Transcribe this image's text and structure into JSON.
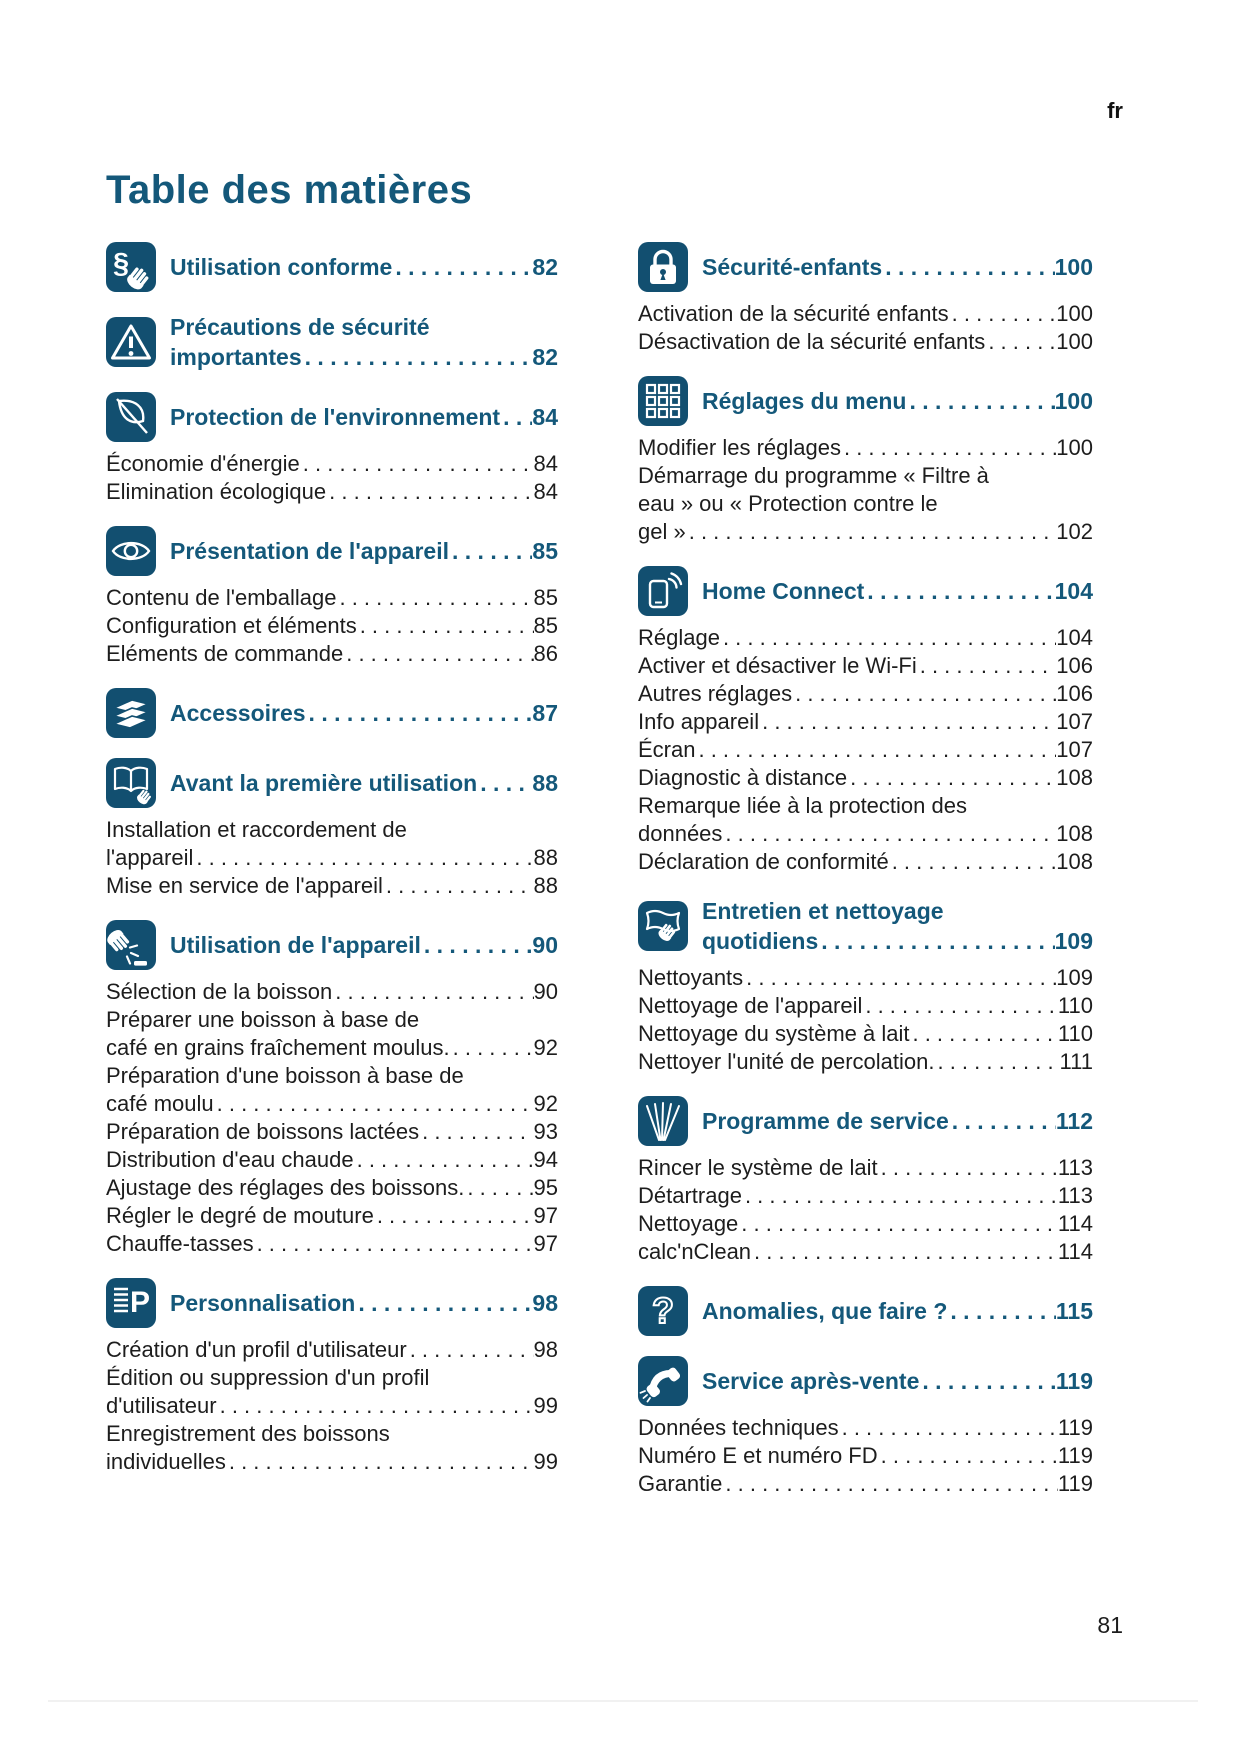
{
  "page": {
    "language_marker": "fr",
    "title": "Table des matières",
    "page_number": "81"
  },
  "colors": {
    "accent": "#14587a",
    "icon_background": "#124f70",
    "body_text": "#1d1d1d"
  },
  "columns": {
    "left": {
      "sections": [
        {
          "icon": "paragraph-hand-icon",
          "title_lines": [
            "Utilisation conforme"
          ],
          "page": "82",
          "items": []
        },
        {
          "icon": "warning-icon",
          "title_lines": [
            "Précautions de sécurité",
            "importantes"
          ],
          "page": "82",
          "items": []
        },
        {
          "icon": "leaf-icon",
          "title_lines": [
            "Protection de l'environnement"
          ],
          "page": "84",
          "items": [
            {
              "lines": [
                "Économie d'énergie"
              ],
              "page": "84"
            },
            {
              "lines": [
                "Elimination écologique"
              ],
              "page": "84"
            }
          ]
        },
        {
          "icon": "eye-icon",
          "title_lines": [
            "Présentation de l'appareil"
          ],
          "page": "85",
          "items": [
            {
              "lines": [
                "Contenu de l'emballage"
              ],
              "page": "85"
            },
            {
              "lines": [
                "Configuration et éléments"
              ],
              "page": "85"
            },
            {
              "lines": [
                "Eléments de commande"
              ],
              "page": "86"
            }
          ]
        },
        {
          "icon": "layers-icon",
          "title_lines": [
            "Accessoires"
          ],
          "page": "87",
          "items": []
        },
        {
          "icon": "open-book-hand-icon",
          "title_lines": [
            "Avant la première utilisation"
          ],
          "page": "88",
          "items": [
            {
              "lines": [
                "Installation et raccordement de",
                "l'appareil"
              ],
              "page": "88"
            },
            {
              "lines": [
                "Mise en service de l'appareil"
              ],
              "page": "88"
            }
          ]
        },
        {
          "icon": "hand-press-icon",
          "title_lines": [
            "Utilisation de l'appareil"
          ],
          "page": "90",
          "items": [
            {
              "lines": [
                "Sélection de la boisson"
              ],
              "page": "90"
            },
            {
              "lines": [
                "Préparer une boisson à base de",
                "café en grains fraîchement moulus."
              ],
              "page": "92"
            },
            {
              "lines": [
                "Préparation d'une boisson à base de",
                "café moulu"
              ],
              "page": "92"
            },
            {
              "lines": [
                "Préparation de boissons lactées"
              ],
              "page": "93"
            },
            {
              "lines": [
                "Distribution d'eau chaude"
              ],
              "page": "94"
            },
            {
              "lines": [
                "Ajustage des réglages des boissons."
              ],
              "page": "95"
            },
            {
              "lines": [
                "Régler le degré de mouture"
              ],
              "page": "97"
            },
            {
              "lines": [
                "Chauffe-tasses"
              ],
              "page": "97"
            }
          ]
        },
        {
          "icon": "list-p-icon",
          "title_lines": [
            "Personnalisation"
          ],
          "page": "98",
          "items": [
            {
              "lines": [
                "Création d'un profil d'utilisateur"
              ],
              "page": "98"
            },
            {
              "lines": [
                "Édition ou suppression d'un profil",
                "d'utilisateur"
              ],
              "page": "99"
            },
            {
              "lines": [
                "Enregistrement des boissons",
                "individuelles"
              ],
              "page": "99"
            }
          ]
        }
      ]
    },
    "right": {
      "sections": [
        {
          "icon": "padlock-icon",
          "title_lines": [
            "Sécurité-enfants"
          ],
          "page": "100",
          "items": [
            {
              "lines": [
                "Activation de la sécurité enfants"
              ],
              "page": "100"
            },
            {
              "lines": [
                "Désactivation de la sécurité enfants"
              ],
              "page": "100"
            }
          ]
        },
        {
          "icon": "keypad-icon",
          "title_lines": [
            "Réglages du menu"
          ],
          "page": "100",
          "items": [
            {
              "lines": [
                "Modifier les réglages"
              ],
              "page": "100"
            },
            {
              "lines": [
                "Démarrage du programme « Filtre à",
                "eau » ou « Protection contre le",
                "gel »"
              ],
              "page": "102"
            }
          ]
        },
        {
          "icon": "smartphone-wireless-icon",
          "title_lines": [
            "Home Connect"
          ],
          "page": "104",
          "items": [
            {
              "lines": [
                "Réglage"
              ],
              "page": "104"
            },
            {
              "lines": [
                "Activer et désactiver le Wi-Fi"
              ],
              "page": "106"
            },
            {
              "lines": [
                "Autres réglages"
              ],
              "page": "106"
            },
            {
              "lines": [
                "Info appareil"
              ],
              "page": "107"
            },
            {
              "lines": [
                "Écran"
              ],
              "page": "107"
            },
            {
              "lines": [
                "Diagnostic à distance"
              ],
              "page": "108"
            },
            {
              "lines": [
                "Remarque liée à la protection des",
                "données"
              ],
              "page": "108"
            },
            {
              "lines": [
                "Déclaration de conformité"
              ],
              "page": "108"
            }
          ]
        },
        {
          "icon": "cloth-hand-icon",
          "title_lines": [
            "Entretien et nettoyage",
            "quotidiens"
          ],
          "page": "109",
          "items": [
            {
              "lines": [
                "Nettoyants"
              ],
              "page": "109"
            },
            {
              "lines": [
                "Nettoyage de l'appareil"
              ],
              "page": "110"
            },
            {
              "lines": [
                "Nettoyage du système à lait"
              ],
              "page": "110"
            },
            {
              "lines": [
                "Nettoyer l'unité de percolation."
              ],
              "page": "111"
            }
          ]
        },
        {
          "icon": "spray-icon",
          "title_lines": [
            "Programme de service"
          ],
          "page": "112",
          "items": [
            {
              "lines": [
                "Rincer le système de lait"
              ],
              "page": "113"
            },
            {
              "lines": [
                "Détartrage"
              ],
              "page": "113"
            },
            {
              "lines": [
                "Nettoyage"
              ],
              "page": "114"
            },
            {
              "lines": [
                "calc'nClean"
              ],
              "page": "114"
            }
          ]
        },
        {
          "icon": "question-mark-icon",
          "title_lines": [
            "Anomalies, que faire ?"
          ],
          "page": "115",
          "items": []
        },
        {
          "icon": "phone-handset-icon",
          "title_lines": [
            "Service après-vente"
          ],
          "page": "119",
          "items": [
            {
              "lines": [
                "Données techniques"
              ],
              "page": "119"
            },
            {
              "lines": [
                "Numéro E et numéro FD"
              ],
              "page": "119"
            },
            {
              "lines": [
                "Garantie"
              ],
              "page": "119"
            }
          ]
        }
      ]
    }
  }
}
